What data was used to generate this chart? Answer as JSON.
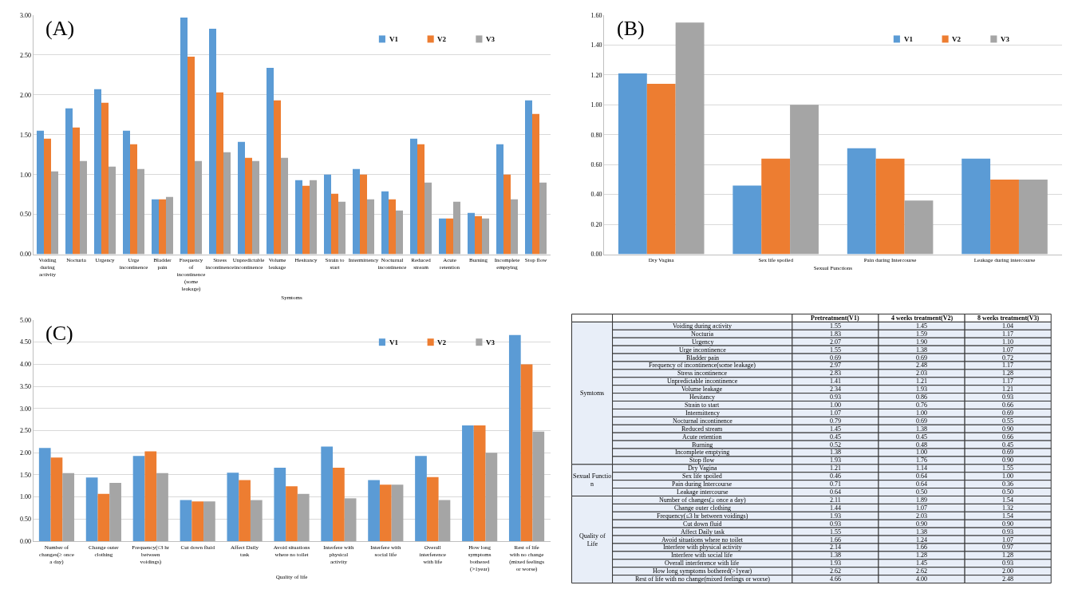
{
  "chart_data": [
    {
      "type": "bar",
      "title": "(A)",
      "xlabel": "Symtoms",
      "grid": "y",
      "legend": "top right",
      "categories": [
        "Voiding during activity",
        "Nocturia",
        "Urgency",
        "Urge incontinence",
        "Bladder pain",
        "Frequency of incontinence(some leakage)",
        "Stress incontinence",
        "Unpredictable incontinence",
        "Volume leakage",
        "Hesitancy",
        "Strain to start",
        "Intermittency",
        "Nocturnal incontinence",
        "Reduced stream",
        "Acute retention",
        "Burning",
        "Incomplete emptying",
        "Stop flow"
      ],
      "series": [
        {
          "name": "V1",
          "color": "#5b9bd5",
          "values": [
            1.55,
            1.83,
            2.07,
            1.55,
            0.69,
            2.97,
            2.83,
            1.41,
            2.34,
            0.93,
            1.0,
            1.07,
            0.79,
            1.45,
            0.45,
            0.52,
            1.38,
            1.93
          ]
        },
        {
          "name": "V2",
          "color": "#ed7d31",
          "values": [
            1.45,
            1.59,
            1.9,
            1.38,
            0.69,
            2.48,
            2.03,
            1.21,
            1.93,
            0.86,
            0.76,
            1.0,
            0.69,
            1.38,
            0.45,
            0.48,
            1.0,
            1.76
          ]
        },
        {
          "name": "V3",
          "color": "#a5a5a5",
          "values": [
            1.04,
            1.17,
            1.1,
            1.07,
            0.72,
            1.17,
            1.28,
            1.17,
            1.21,
            0.93,
            0.66,
            0.69,
            0.55,
            0.9,
            0.66,
            0.45,
            0.69,
            0.9
          ]
        }
      ],
      "ylim": [
        0,
        3.0
      ],
      "yticks": [
        {
          "value": 0,
          "label": "0.00"
        },
        {
          "value": 0.5,
          "label": "0.50"
        },
        {
          "value": 1.0,
          "label": "1.00"
        },
        {
          "value": 1.5,
          "label": "1.50"
        },
        {
          "value": 2.0,
          "label": "2.00"
        },
        {
          "value": 2.5,
          "label": "2.50"
        },
        {
          "value": 3.0,
          "label": "3.00"
        }
      ]
    },
    {
      "type": "bar",
      "title": "(B)",
      "xlabel": "Sexual Functions",
      "grid": "y",
      "legend": "top right",
      "categories": [
        "Dry Vagina",
        "Sex life spoiled",
        "Pain during Intercourse",
        "Leakage during intercourse"
      ],
      "series": [
        {
          "name": "V1",
          "color": "#5b9bd5",
          "values": [
            1.21,
            0.46,
            0.71,
            0.64
          ]
        },
        {
          "name": "V2",
          "color": "#ed7d31",
          "values": [
            1.14,
            0.64,
            0.64,
            0.5
          ]
        },
        {
          "name": "V3",
          "color": "#a5a5a5",
          "values": [
            1.55,
            1.0,
            0.36,
            0.5
          ]
        }
      ],
      "ylim": [
        0,
        1.6
      ],
      "yticks": [
        {
          "value": 0,
          "label": "0.00"
        },
        {
          "value": 0.2,
          "label": "0.20"
        },
        {
          "value": 0.4,
          "label": "0.40"
        },
        {
          "value": 0.6,
          "label": "0.60"
        },
        {
          "value": 0.8,
          "label": "0.80"
        },
        {
          "value": 1.0,
          "label": "1.00"
        },
        {
          "value": 1.2,
          "label": "1.20"
        },
        {
          "value": 1.4,
          "label": "1.40"
        },
        {
          "value": 1.6,
          "label": "1.60"
        }
      ]
    },
    {
      "type": "bar",
      "title": "(C)",
      "xlabel": "Quality of life",
      "grid": "y",
      "legend": "top right",
      "categories": [
        "Number of changes(≥ once a day)",
        "Change outer clothing",
        "Frequency(≤3 hr between voidings)",
        "Cut down fluid",
        "Affect Daily task",
        "Avoid situations where no toilet",
        "Interfere with physical activity",
        "Interfere with social life",
        "Overall interference with life",
        "How long symptoms bothered(>1year)",
        "Rest of life with no change(mixed feelings or worse)"
      ],
      "series": [
        {
          "name": "V1",
          "color": "#5b9bd5",
          "values": [
            2.11,
            1.44,
            1.93,
            0.93,
            1.55,
            1.66,
            2.14,
            1.38,
            1.93,
            2.62,
            4.66
          ]
        },
        {
          "name": "V2",
          "color": "#ed7d31",
          "values": [
            1.89,
            1.07,
            2.03,
            0.9,
            1.38,
            1.24,
            1.66,
            1.28,
            1.45,
            2.62,
            4.0
          ]
        },
        {
          "name": "V3",
          "color": "#a5a5a5",
          "values": [
            1.54,
            1.32,
            1.54,
            0.9,
            0.93,
            1.07,
            0.97,
            1.28,
            0.93,
            2.0,
            2.48
          ]
        }
      ],
      "ylim": [
        0,
        5.0
      ],
      "yticks": [
        {
          "value": 0,
          "label": "0.00"
        },
        {
          "value": 0.5,
          "label": "0.50"
        },
        {
          "value": 1.0,
          "label": "1.00"
        },
        {
          "value": 1.5,
          "label": "1.50"
        },
        {
          "value": 2.0,
          "label": "2.00"
        },
        {
          "value": 2.5,
          "label": "2.50"
        },
        {
          "value": 3.0,
          "label": "3.00"
        },
        {
          "value": 3.5,
          "label": "3.50"
        },
        {
          "value": 4.0,
          "label": "4.00"
        },
        {
          "value": 4.5,
          "label": "4.50"
        },
        {
          "value": 5.0,
          "label": "5.00"
        }
      ]
    },
    {
      "type": "other",
      "categories": [
        "Voiding during activity",
        "Nocturia",
        "Urgency",
        "Urge incontinence",
        "Bladder pain",
        "Frequency of incontinence(some leakage)",
        "Stress incontinence",
        "Unpredictable incontinence",
        "Volume leakage",
        "Hesitancy",
        "Strain to start",
        "Intermittency",
        "Nocturnal incontinence",
        "Reduced stream",
        "Acute retention",
        "Burning",
        "Incomplete emptying",
        "Stop flow",
        "Dry Vagina",
        "Sex life spoiled",
        "Pain during Intercourse",
        "Leakage intercourse",
        "Number of changes(≥ once a day)",
        "Change outer clothing",
        "Frequency(≤3 hr between voidings)",
        "Cut down fluid",
        "Affect Daily task",
        "Avoid situations where no toilet",
        "Interfere with physical activity",
        "Interfere with social life",
        "Overall interference with life",
        "How long symptoms bothered(>1year)",
        "Rest of life with no change(mixed feelings or worse)"
      ],
      "series": [
        {
          "name": "Pretreatment(V1)",
          "values": [
            1.55,
            1.83,
            2.07,
            1.55,
            0.69,
            2.97,
            2.83,
            1.41,
            2.34,
            0.93,
            1.0,
            1.07,
            0.79,
            1.45,
            0.45,
            0.52,
            1.38,
            1.93,
            1.21,
            0.46,
            0.71,
            0.64,
            2.11,
            1.44,
            1.93,
            0.93,
            1.55,
            1.66,
            2.14,
            1.38,
            1.93,
            2.62,
            4.66
          ],
          "value_labels": [
            "1.55",
            "1.83",
            "2.07",
            "1.55",
            "0.69",
            "2.97",
            "2.83",
            "1.41",
            "2.34",
            "0.93",
            "1.00",
            "1.07",
            "0.79",
            "1.45",
            "0.45",
            "0.52",
            "1.38",
            "1.93",
            "1.21",
            "0.46",
            "0.71",
            "0.64",
            "2.11",
            "1.44",
            "1.93",
            "0.93",
            "1.55",
            "1.66",
            "2.14",
            "1.38",
            "1.93",
            "2.62",
            "4.66"
          ]
        },
        {
          "name": "4 weeks treatment(V2)",
          "values": [
            1.45,
            1.59,
            1.9,
            1.38,
            0.69,
            2.48,
            2.03,
            1.21,
            1.93,
            0.86,
            0.76,
            1.0,
            0.69,
            1.38,
            0.45,
            0.48,
            1.0,
            1.76,
            1.14,
            0.64,
            0.64,
            0.5,
            1.89,
            1.07,
            2.03,
            0.9,
            1.38,
            1.24,
            1.66,
            1.28,
            1.45,
            2.62,
            4.0
          ],
          "value_labels": [
            "1.45",
            "1.59",
            "1.90",
            "1.38",
            "0.69",
            "2.48",
            "2.03",
            "1.21",
            "1.93",
            "0.86",
            "0.76",
            "1.00",
            "0.69",
            "1.38",
            "0.45",
            "0.48",
            "1.00",
            "1.76",
            "1.14",
            "0.64",
            "0.64",
            "0.50",
            "1.89",
            "1.07",
            "2.03",
            "0.90",
            "1.38",
            "1.24",
            "1.66",
            "1.28",
            "1.45",
            "2.62",
            "4.00"
          ]
        },
        {
          "name": "8 weeks treatment(V3)",
          "values": [
            1.04,
            1.17,
            1.1,
            1.07,
            0.72,
            1.17,
            1.28,
            1.17,
            1.21,
            0.93,
            0.66,
            0.69,
            0.55,
            0.9,
            0.66,
            0.45,
            0.69,
            0.9,
            1.55,
            1.0,
            0.36,
            0.5,
            1.54,
            1.32,
            1.54,
            0.9,
            0.93,
            1.07,
            0.97,
            1.28,
            0.93,
            2.0,
            2.48
          ],
          "value_labels": [
            "1.04",
            "1.17",
            "1.10",
            "1.07",
            "0.72",
            "1.17",
            "1.28",
            "1.17",
            "1.21",
            "0.93",
            "0.66",
            "0.69",
            "0.55",
            "0.90",
            "0.66",
            "0.45",
            "0.69",
            "0.90",
            "1.55",
            "1.00",
            "0.36",
            "0.50",
            "1.54",
            "1.32",
            "1.54",
            "0.90",
            "0.93",
            "1.07",
            "0.97",
            "1.28",
            "0.93",
            "2.00",
            "2.48"
          ]
        }
      ],
      "annotations": [
        {
          "text": "Symtoms",
          "y": "Voiding during activity"
        },
        {
          "text": "Sexual Functio n",
          "y": "Dry Vagina"
        },
        {
          "text": "Quality of Life",
          "y": "Number of changes(≥ once a day)"
        }
      ]
    }
  ]
}
